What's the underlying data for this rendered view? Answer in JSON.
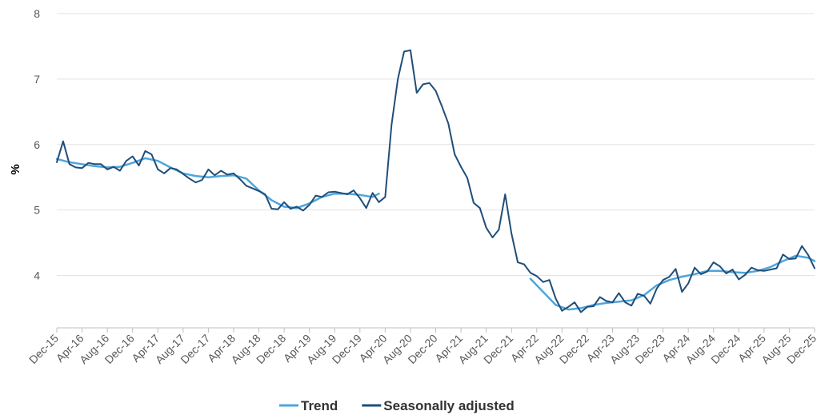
{
  "chart_data": {
    "type": "line",
    "title": "",
    "xlabel": "",
    "ylabel": "%",
    "ylim": [
      3.2,
      8.0
    ],
    "yticks": [
      4,
      5,
      6,
      7,
      8
    ],
    "xlim": [
      "2015-12",
      "2025-12"
    ],
    "x_tick_labels": [
      "Dec-15",
      "Apr-16",
      "Aug-16",
      "Dec-16",
      "Apr-17",
      "Aug-17",
      "Dec-17",
      "Apr-18",
      "Aug-18",
      "Dec-18",
      "Apr-19",
      "Aug-19",
      "Dec-19",
      "Apr-20",
      "Aug-20",
      "Dec-20",
      "Apr-21",
      "Aug-21",
      "Dec-21",
      "Apr-22",
      "Aug-22",
      "Dec-22",
      "Apr-23",
      "Aug-23",
      "Dec-23",
      "Apr-24",
      "Aug-24",
      "Dec-24",
      "Apr-25",
      "Aug-25",
      "Dec-25"
    ],
    "x_tick_dates": [
      "2015-12",
      "2016-04",
      "2016-08",
      "2016-12",
      "2017-04",
      "2017-08",
      "2017-12",
      "2018-04",
      "2018-08",
      "2018-12",
      "2019-04",
      "2019-08",
      "2019-12",
      "2020-04",
      "2020-08",
      "2020-12",
      "2021-04",
      "2021-08",
      "2021-12",
      "2022-04",
      "2022-08",
      "2022-12",
      "2023-04",
      "2023-08",
      "2023-12",
      "2024-04",
      "2024-08",
      "2024-12",
      "2025-04",
      "2025-08",
      "2025-12"
    ],
    "grid": true,
    "legend_position": "bottom-center",
    "series": [
      {
        "name": "Trend",
        "color": "#4ea6dc",
        "points": [
          [
            "2015-12",
            5.78
          ],
          [
            "2016-02",
            5.73
          ],
          [
            "2016-04",
            5.7
          ],
          [
            "2016-06",
            5.67
          ],
          [
            "2016-08",
            5.65
          ],
          [
            "2016-10",
            5.66
          ],
          [
            "2016-12",
            5.72
          ],
          [
            "2017-02",
            5.79
          ],
          [
            "2017-04",
            5.75
          ],
          [
            "2017-06",
            5.65
          ],
          [
            "2017-08",
            5.56
          ],
          [
            "2017-10",
            5.52
          ],
          [
            "2017-12",
            5.5
          ],
          [
            "2018-02",
            5.52
          ],
          [
            "2018-04",
            5.53
          ],
          [
            "2018-06",
            5.48
          ],
          [
            "2018-08",
            5.3
          ],
          [
            "2018-10",
            5.15
          ],
          [
            "2018-12",
            5.05
          ],
          [
            "2019-02",
            5.03
          ],
          [
            "2019-04",
            5.1
          ],
          [
            "2019-06",
            5.2
          ],
          [
            "2019-08",
            5.25
          ],
          [
            "2019-10",
            5.25
          ],
          [
            "2019-12",
            5.23
          ],
          [
            "2020-02",
            5.2
          ],
          [
            "2020-03",
            5.25
          ]
        ]
      },
      {
        "name": "Trend",
        "color": "#4ea6dc",
        "points": [
          [
            "2022-03",
            3.95
          ],
          [
            "2022-05",
            3.75
          ],
          [
            "2022-07",
            3.55
          ],
          [
            "2022-09",
            3.48
          ],
          [
            "2022-11",
            3.5
          ],
          [
            "2023-01",
            3.55
          ],
          [
            "2023-03",
            3.58
          ],
          [
            "2023-05",
            3.6
          ],
          [
            "2023-07",
            3.62
          ],
          [
            "2023-09",
            3.7
          ],
          [
            "2023-11",
            3.85
          ],
          [
            "2024-01",
            3.93
          ],
          [
            "2024-03",
            3.98
          ],
          [
            "2024-05",
            4.02
          ],
          [
            "2024-07",
            4.07
          ],
          [
            "2024-09",
            4.07
          ],
          [
            "2024-11",
            4.05
          ],
          [
            "2025-01",
            4.04
          ],
          [
            "2025-03",
            4.07
          ],
          [
            "2025-05",
            4.13
          ],
          [
            "2025-07",
            4.22
          ],
          [
            "2025-09",
            4.3
          ],
          [
            "2025-11",
            4.27
          ],
          [
            "2025-12",
            4.22
          ]
        ]
      },
      {
        "name": "Seasonally adjusted",
        "color": "#1f4e79",
        "points": [
          [
            "2015-12",
            5.73
          ],
          [
            "2016-01",
            6.05
          ],
          [
            "2016-02",
            5.7
          ],
          [
            "2016-03",
            5.65
          ],
          [
            "2016-04",
            5.64
          ],
          [
            "2016-05",
            5.72
          ],
          [
            "2016-06",
            5.7
          ],
          [
            "2016-07",
            5.7
          ],
          [
            "2016-08",
            5.62
          ],
          [
            "2016-09",
            5.66
          ],
          [
            "2016-10",
            5.6
          ],
          [
            "2016-11",
            5.75
          ],
          [
            "2016-12",
            5.82
          ],
          [
            "2017-01",
            5.68
          ],
          [
            "2017-02",
            5.9
          ],
          [
            "2017-03",
            5.85
          ],
          [
            "2017-04",
            5.62
          ],
          [
            "2017-05",
            5.56
          ],
          [
            "2017-06",
            5.64
          ],
          [
            "2017-07",
            5.62
          ],
          [
            "2017-08",
            5.55
          ],
          [
            "2017-09",
            5.48
          ],
          [
            "2017-10",
            5.42
          ],
          [
            "2017-11",
            5.46
          ],
          [
            "2017-12",
            5.62
          ],
          [
            "2018-01",
            5.53
          ],
          [
            "2018-02",
            5.6
          ],
          [
            "2018-03",
            5.54
          ],
          [
            "2018-04",
            5.56
          ],
          [
            "2018-05",
            5.47
          ],
          [
            "2018-06",
            5.37
          ],
          [
            "2018-07",
            5.33
          ],
          [
            "2018-08",
            5.29
          ],
          [
            "2018-09",
            5.24
          ],
          [
            "2018-10",
            5.02
          ],
          [
            "2018-11",
            5.01
          ],
          [
            "2018-12",
            5.12
          ],
          [
            "2019-01",
            5.02
          ],
          [
            "2019-02",
            5.05
          ],
          [
            "2019-03",
            4.99
          ],
          [
            "2019-04",
            5.08
          ],
          [
            "2019-05",
            5.22
          ],
          [
            "2019-06",
            5.2
          ],
          [
            "2019-07",
            5.27
          ],
          [
            "2019-08",
            5.28
          ],
          [
            "2019-09",
            5.26
          ],
          [
            "2019-10",
            5.24
          ],
          [
            "2019-11",
            5.3
          ],
          [
            "2019-12",
            5.18
          ],
          [
            "2020-01",
            5.03
          ],
          [
            "2020-02",
            5.26
          ],
          [
            "2020-03",
            5.12
          ],
          [
            "2020-04",
            5.2
          ],
          [
            "2020-05",
            6.3
          ],
          [
            "2020-06",
            7.0
          ],
          [
            "2020-07",
            7.42
          ],
          [
            "2020-08",
            7.44
          ],
          [
            "2020-09",
            6.79
          ],
          [
            "2020-10",
            6.92
          ],
          [
            "2020-11",
            6.94
          ],
          [
            "2020-12",
            6.82
          ],
          [
            "2021-01",
            6.58
          ],
          [
            "2021-02",
            6.32
          ],
          [
            "2021-03",
            5.85
          ],
          [
            "2021-04",
            5.66
          ],
          [
            "2021-05",
            5.49
          ],
          [
            "2021-06",
            5.11
          ],
          [
            "2021-07",
            5.03
          ],
          [
            "2021-08",
            4.73
          ],
          [
            "2021-09",
            4.58
          ],
          [
            "2021-10",
            4.7
          ],
          [
            "2021-11",
            5.24
          ],
          [
            "2021-12",
            4.64
          ],
          [
            "2022-01",
            4.2
          ],
          [
            "2022-02",
            4.17
          ],
          [
            "2022-03",
            4.04
          ],
          [
            "2022-04",
            3.99
          ],
          [
            "2022-05",
            3.9
          ],
          [
            "2022-06",
            3.93
          ],
          [
            "2022-07",
            3.65
          ],
          [
            "2022-08",
            3.46
          ],
          [
            "2022-09",
            3.52
          ],
          [
            "2022-10",
            3.59
          ],
          [
            "2022-11",
            3.44
          ],
          [
            "2022-12",
            3.52
          ],
          [
            "2023-01",
            3.53
          ],
          [
            "2023-02",
            3.67
          ],
          [
            "2023-03",
            3.61
          ],
          [
            "2023-04",
            3.59
          ],
          [
            "2023-05",
            3.73
          ],
          [
            "2023-06",
            3.59
          ],
          [
            "2023-07",
            3.54
          ],
          [
            "2023-08",
            3.72
          ],
          [
            "2023-09",
            3.69
          ],
          [
            "2023-10",
            3.57
          ],
          [
            "2023-11",
            3.8
          ],
          [
            "2023-12",
            3.93
          ],
          [
            "2024-01",
            3.98
          ],
          [
            "2024-02",
            4.1
          ],
          [
            "2024-03",
            3.75
          ],
          [
            "2024-04",
            3.88
          ],
          [
            "2024-05",
            4.12
          ],
          [
            "2024-06",
            4.02
          ],
          [
            "2024-07",
            4.06
          ],
          [
            "2024-08",
            4.2
          ],
          [
            "2024-09",
            4.14
          ],
          [
            "2024-10",
            4.03
          ],
          [
            "2024-11",
            4.09
          ],
          [
            "2024-12",
            3.94
          ],
          [
            "2025-01",
            4.01
          ],
          [
            "2025-02",
            4.12
          ],
          [
            "2025-03",
            4.08
          ],
          [
            "2025-04",
            4.07
          ],
          [
            "2025-05",
            4.09
          ],
          [
            "2025-06",
            4.11
          ],
          [
            "2025-07",
            4.32
          ],
          [
            "2025-08",
            4.25
          ],
          [
            "2025-09",
            4.26
          ],
          [
            "2025-10",
            4.45
          ],
          [
            "2025-11",
            4.31
          ],
          [
            "2025-12",
            4.11
          ]
        ]
      }
    ],
    "legend": [
      {
        "label": "Trend",
        "color": "#4ea6dc"
      },
      {
        "label": "Seasonally adjusted",
        "color": "#1f4e79"
      }
    ]
  }
}
